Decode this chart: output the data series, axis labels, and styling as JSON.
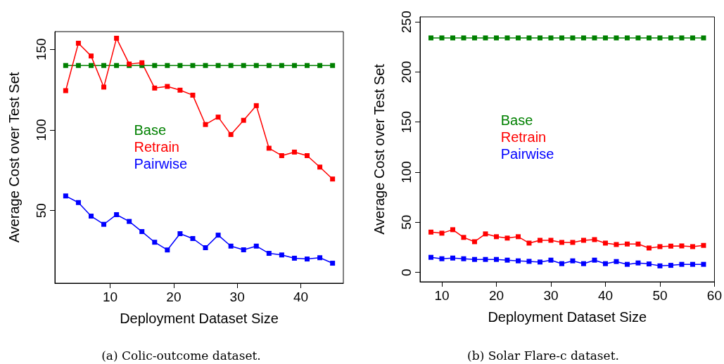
{
  "chart_data": [
    {
      "type": "line",
      "xlabel": "Deployment Dataset Size",
      "ylabel": "Average Cost over Test Set",
      "annotations": [
        "(a) Colic-outcome dataset."
      ],
      "x": [
        3,
        5,
        7,
        9,
        11,
        13,
        15,
        17,
        19,
        21,
        23,
        25,
        27,
        29,
        31,
        33,
        35,
        37,
        39,
        41,
        43,
        45
      ],
      "series": [
        {
          "name": "Base",
          "color": "#008000",
          "values": [
            140,
            140,
            140,
            140,
            140,
            140,
            140,
            140,
            140,
            140,
            140,
            140,
            140,
            140,
            140,
            140,
            140,
            140,
            140,
            140,
            140,
            140
          ]
        },
        {
          "name": "Retrain",
          "color": "#ff0000",
          "values": [
            124.4,
            153.8,
            145.9,
            126.6,
            156.9,
            140.9,
            141.7,
            126,
            127,
            124.7,
            121.6,
            103.4,
            108,
            97.2,
            106,
            115.1,
            88.7,
            84.1,
            86.3,
            84.1,
            77,
            69.6
          ]
        },
        {
          "name": "Pairwise",
          "color": "#0000ff",
          "values": [
            59.1,
            55,
            46.6,
            41.5,
            47.5,
            43.3,
            37,
            30.4,
            25.6,
            35.7,
            32.7,
            27,
            34.8,
            28,
            25.7,
            28,
            23.5,
            22.5,
            20.5,
            20,
            20.8,
            17.4
          ]
        }
      ],
      "xlim": [
        1.3,
        46.7
      ],
      "xticks": [
        10,
        20,
        30,
        40
      ],
      "ylim": [
        5,
        161
      ],
      "yticks": [
        50,
        100,
        150
      ],
      "grid": false,
      "legend": "left",
      "marker": "square",
      "line_style": "solid"
    },
    {
      "type": "line",
      "xlabel": "Deployment Dataset Size",
      "ylabel": "Average Cost over Test Set",
      "annotations": [
        "(b) Solar Flare-c dataset."
      ],
      "x": [
        8,
        10,
        12,
        14,
        16,
        18,
        20,
        22,
        24,
        26,
        28,
        30,
        32,
        34,
        36,
        38,
        40,
        42,
        44,
        46,
        48,
        50,
        52,
        54,
        56,
        58
      ],
      "series": [
        {
          "name": "Base",
          "color": "#008000",
          "values": [
            234,
            234,
            234,
            234,
            234,
            234,
            234,
            234,
            234,
            234,
            234,
            234,
            234,
            234,
            234,
            234,
            234,
            234,
            234,
            234,
            234,
            234,
            234,
            234,
            234,
            234
          ]
        },
        {
          "name": "Retrain",
          "color": "#ff0000",
          "values": [
            40.2,
            39.1,
            42.6,
            34.9,
            30.6,
            38.4,
            35.6,
            34.2,
            35.6,
            29.2,
            32,
            32,
            29.9,
            29.9,
            32,
            32.7,
            29.2,
            27.8,
            28.3,
            28.3,
            24.3,
            25.7,
            26.2,
            26.4,
            25.7,
            26.9
          ]
        },
        {
          "name": "Pairwise",
          "color": "#0000ff",
          "values": [
            15,
            13.6,
            14.3,
            13.6,
            12.9,
            12.9,
            12.9,
            12.2,
            11.5,
            11,
            10.3,
            12.2,
            8.7,
            11.5,
            8.7,
            12.2,
            8.7,
            10.8,
            8,
            9.4,
            8.4,
            6.5,
            7,
            8,
            8,
            8
          ]
        }
      ],
      "xlim": [
        6,
        60
      ],
      "xticks": [
        10,
        20,
        30,
        40,
        50,
        60
      ],
      "ylim": [
        -9.4,
        255
      ],
      "yticks": [
        0,
        50,
        100,
        150,
        200,
        250
      ],
      "grid": false,
      "legend": "left",
      "marker": "square",
      "line_style": "solid"
    }
  ]
}
